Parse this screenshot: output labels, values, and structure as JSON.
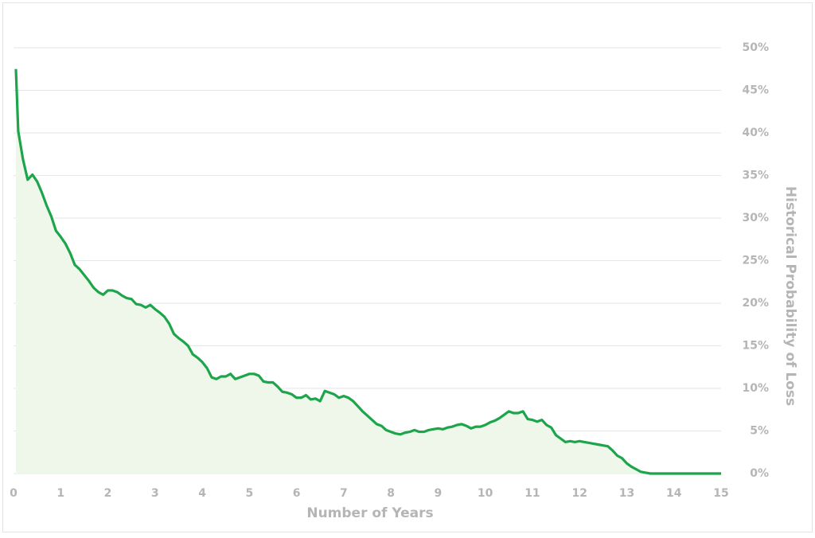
{
  "chart_data": {
    "type": "area",
    "x_label": "Number of Years",
    "y_label": "Historical Probability of Loss",
    "x": [
      0.05,
      0.1,
      0.2,
      0.3,
      0.4,
      0.5,
      0.6,
      0.7,
      0.8,
      0.9,
      1.0,
      1.1,
      1.2,
      1.3,
      1.4,
      1.5,
      1.6,
      1.7,
      1.8,
      1.9,
      2.0,
      2.1,
      2.2,
      2.3,
      2.4,
      2.5,
      2.6,
      2.7,
      2.8,
      2.9,
      3.0,
      3.1,
      3.2,
      3.3,
      3.4,
      3.5,
      3.6,
      3.7,
      3.8,
      3.9,
      4.0,
      4.1,
      4.2,
      4.3,
      4.4,
      4.5,
      4.6,
      4.7,
      4.8,
      4.9,
      5.0,
      5.1,
      5.2,
      5.3,
      5.4,
      5.5,
      5.6,
      5.7,
      5.8,
      5.9,
      6.0,
      6.1,
      6.2,
      6.3,
      6.4,
      6.5,
      6.6,
      6.7,
      6.8,
      6.9,
      7.0,
      7.1,
      7.2,
      7.3,
      7.4,
      7.5,
      7.6,
      7.7,
      7.8,
      7.9,
      8.0,
      8.1,
      8.2,
      8.3,
      8.4,
      8.5,
      8.6,
      8.7,
      8.8,
      8.9,
      9.0,
      9.1,
      9.2,
      9.3,
      9.4,
      9.5,
      9.6,
      9.7,
      9.8,
      9.9,
      10.0,
      10.1,
      10.2,
      10.3,
      10.4,
      10.5,
      10.6,
      10.7,
      10.8,
      10.9,
      11.0,
      11.1,
      11.2,
      11.3,
      11.4,
      11.5,
      11.6,
      11.7,
      11.8,
      11.9,
      12.0,
      12.1,
      12.2,
      12.3,
      12.4,
      12.5,
      12.6,
      12.7,
      12.8,
      12.9,
      13.0,
      13.1,
      13.2,
      13.3,
      13.4,
      13.5,
      14.0,
      14.5,
      15.0
    ],
    "values": [
      47.5,
      40.2,
      36.9,
      34.5,
      35.1,
      34.3,
      33,
      31.5,
      30.2,
      28.5,
      27.8,
      27,
      25.9,
      24.5,
      24,
      23.3,
      22.6,
      21.8,
      21.3,
      21,
      21.5,
      21.5,
      21.3,
      20.9,
      20.6,
      20.5,
      19.9,
      19.8,
      19.5,
      19.8,
      19.3,
      18.9,
      18.4,
      17.6,
      16.4,
      15.9,
      15.5,
      15,
      14,
      13.6,
      13.1,
      12.4,
      11.3,
      11.1,
      11.4,
      11.4,
      11.7,
      11.1,
      11.3,
      11.5,
      11.7,
      11.7,
      11.5,
      10.8,
      10.7,
      10.7,
      10.2,
      9.6,
      9.5,
      9.3,
      8.9,
      8.9,
      9.2,
      8.7,
      8.8,
      8.5,
      9.7,
      9.5,
      9.3,
      8.9,
      9.1,
      8.9,
      8.5,
      7.9,
      7.3,
      6.8,
      6.3,
      5.8,
      5.6,
      5.1,
      4.9,
      4.7,
      4.6,
      4.8,
      4.9,
      5.1,
      4.9,
      4.9,
      5.1,
      5.2,
      5.3,
      5.2,
      5.4,
      5.5,
      5.7,
      5.8,
      5.6,
      5.3,
      5.5,
      5.5,
      5.7,
      6,
      6.2,
      6.5,
      6.9,
      7.3,
      7.1,
      7.1,
      7.3,
      6.4,
      6.3,
      6.1,
      6.3,
      5.7,
      5.4,
      4.5,
      4.1,
      3.7,
      3.8,
      3.7,
      3.8,
      3.7,
      3.6,
      3.5,
      3.4,
      3.3,
      3.2,
      2.7,
      2.1,
      1.8,
      1.2,
      0.8,
      0.5,
      0.2,
      0.1,
      0,
      0,
      0,
      0
    ],
    "color": "#1da54b",
    "fill_color": "#eef7ea",
    "xlim": [
      0,
      15
    ],
    "ylim": [
      0,
      50
    ],
    "xticks": [
      0,
      1,
      2,
      3,
      4,
      5,
      6,
      7,
      8,
      9,
      10,
      11,
      12,
      13,
      14,
      15
    ],
    "yticks": [
      {
        "value": 0,
        "label": "0%"
      },
      {
        "value": 5,
        "label": "5%"
      },
      {
        "value": 10,
        "label": "10%"
      },
      {
        "value": 15,
        "label": "15%"
      },
      {
        "value": 20,
        "label": "20%"
      },
      {
        "value": 25,
        "label": "25%"
      },
      {
        "value": 30,
        "label": "30%"
      },
      {
        "value": 35,
        "label": "35%"
      },
      {
        "value": 40,
        "label": "40%"
      },
      {
        "value": 45,
        "label": "45%"
      },
      {
        "value": 50,
        "label": "50%"
      }
    ],
    "y_axis_side": "right",
    "grid": true
  }
}
